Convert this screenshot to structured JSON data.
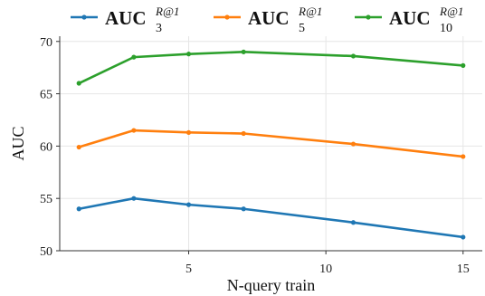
{
  "chart_data": {
    "type": "line",
    "xlabel": "N-query train",
    "ylabel": "AUC",
    "xlim": [
      0.3,
      15.7
    ],
    "ylim": [
      50,
      70.5
    ],
    "xticks": [
      5,
      10,
      15
    ],
    "xtick_labels": [
      "5",
      "10",
      "15"
    ],
    "yticks": [
      50,
      55,
      60,
      65,
      70
    ],
    "ytick_labels": [
      "50",
      "55",
      "60",
      "65",
      "70"
    ],
    "grid": true,
    "legend_position": "top",
    "x": [
      1,
      3,
      5,
      7,
      11,
      15
    ],
    "series": [
      {
        "name": "AUC_3^{R@1}",
        "legend": {
          "main": "AUC",
          "sub": "3",
          "sup": "R@1"
        },
        "color": "#1f77b4",
        "values": [
          54.0,
          55.0,
          54.4,
          54.0,
          52.7,
          51.3
        ]
      },
      {
        "name": "AUC_5^{R@1}",
        "legend": {
          "main": "AUC",
          "sub": "5",
          "sup": "R@1"
        },
        "color": "#ff7f0e",
        "values": [
          59.9,
          61.5,
          61.3,
          61.2,
          60.2,
          59.0
        ]
      },
      {
        "name": "AUC_10^{R@1}",
        "legend": {
          "main": "AUC",
          "sub": "10",
          "sup": "R@1"
        },
        "color": "#2ca02c",
        "values": [
          66.0,
          68.5,
          68.8,
          69.0,
          68.6,
          67.7
        ]
      }
    ]
  }
}
